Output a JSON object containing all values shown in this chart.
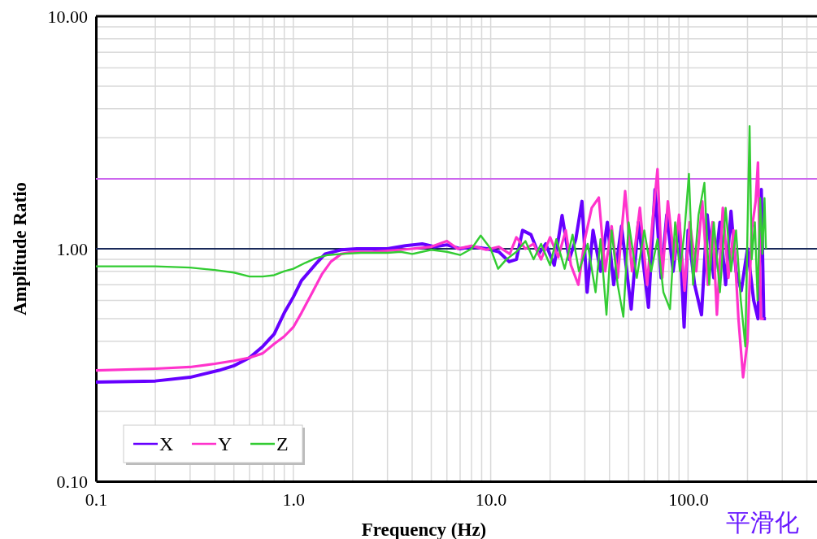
{
  "chart_data": {
    "type": "line",
    "xlabel": "Frequency (Hz)",
    "ylabel": "Amplitude Ratio",
    "log": "xy",
    "grid": true,
    "legend": "bottom left",
    "marker": "none",
    "line_style": "solid",
    "xlim": [
      0.1,
      450
    ],
    "ylim": [
      0.1,
      10
    ],
    "xticks": [
      {
        "value": 0.1,
        "label": "0.1"
      },
      {
        "value": 0.2,
        "label": null
      },
      {
        "value": 0.3,
        "label": null
      },
      {
        "value": 0.4,
        "label": null
      },
      {
        "value": 0.5,
        "label": null
      },
      {
        "value": 0.6,
        "label": null
      },
      {
        "value": 0.7,
        "label": null
      },
      {
        "value": 0.8,
        "label": null
      },
      {
        "value": 0.9,
        "label": null
      },
      {
        "value": 1,
        "label": "1.0"
      },
      {
        "value": 2,
        "label": null
      },
      {
        "value": 3,
        "label": null
      },
      {
        "value": 4,
        "label": null
      },
      {
        "value": 5,
        "label": null
      },
      {
        "value": 6,
        "label": null
      },
      {
        "value": 7,
        "label": null
      },
      {
        "value": 8,
        "label": null
      },
      {
        "value": 9,
        "label": null
      },
      {
        "value": 10,
        "label": "10.0"
      },
      {
        "value": 20,
        "label": null
      },
      {
        "value": 30,
        "label": null
      },
      {
        "value": 40,
        "label": null
      },
      {
        "value": 50,
        "label": null
      },
      {
        "value": 60,
        "label": null
      },
      {
        "value": 70,
        "label": null
      },
      {
        "value": 80,
        "label": null
      },
      {
        "value": 90,
        "label": null
      },
      {
        "value": 100,
        "label": "100.0"
      },
      {
        "value": 200,
        "label": null
      },
      {
        "value": 300,
        "label": null
      },
      {
        "value": 400,
        "label": null
      }
    ],
    "yticks": [
      {
        "value": 0.1,
        "label": "0.10"
      },
      {
        "value": 0.2,
        "label": null
      },
      {
        "value": 0.3,
        "label": null
      },
      {
        "value": 0.4,
        "label": null
      },
      {
        "value": 0.5,
        "label": null
      },
      {
        "value": 0.6,
        "label": null
      },
      {
        "value": 0.7,
        "label": null
      },
      {
        "value": 0.8,
        "label": null
      },
      {
        "value": 0.9,
        "label": null
      },
      {
        "value": 1,
        "label": "1.00"
      },
      {
        "value": 2,
        "label": null
      },
      {
        "value": 3,
        "label": null
      },
      {
        "value": 4,
        "label": null
      },
      {
        "value": 5,
        "label": null
      },
      {
        "value": 6,
        "label": null
      },
      {
        "value": 7,
        "label": null
      },
      {
        "value": 8,
        "label": null
      },
      {
        "value": 9,
        "label": null
      },
      {
        "value": 10,
        "label": "10.00"
      }
    ],
    "ref_lines": [
      {
        "axis": "y",
        "value": 1,
        "color": "#1a2a5a"
      },
      {
        "axis": "y",
        "value": 2,
        "color": "#cc66ee"
      }
    ],
    "annotations": [
      "平滑化"
    ],
    "series": [
      {
        "name": "X",
        "color": "#6600ff",
        "x": [
          0.1,
          0.2,
          0.3,
          0.42,
          0.5,
          0.6,
          0.7,
          0.8,
          0.9,
          1.0,
          1.1,
          1.3,
          1.45,
          1.75,
          2.1,
          3.0,
          3.7,
          4.5,
          5.2,
          6.0,
          7.0,
          8.0,
          9.6,
          11,
          12.4,
          13.5,
          14.5,
          16,
          17.5,
          19,
          21,
          23,
          25,
          27,
          29,
          30.8,
          33,
          36,
          39,
          42,
          46,
          51.5,
          56,
          60,
          63,
          68,
          73,
          78,
          84,
          90,
          95.5,
          100,
          108,
          117,
          125,
          135,
          145,
          155,
          165,
          175,
          186,
          200,
          215,
          226,
          235,
          242,
          248
        ],
        "values": [
          0.267,
          0.27,
          0.28,
          0.3,
          0.314,
          0.34,
          0.38,
          0.43,
          0.53,
          0.62,
          0.73,
          0.86,
          0.95,
          0.99,
          1.0,
          1.0,
          1.03,
          1.05,
          1.02,
          1.04,
          1.0,
          1.02,
          1.0,
          0.97,
          0.88,
          0.9,
          1.2,
          1.15,
          0.95,
          1.05,
          0.85,
          1.39,
          0.9,
          1.1,
          1.6,
          0.65,
          1.2,
          0.8,
          1.3,
          0.7,
          1.25,
          0.55,
          1.3,
          0.8,
          0.56,
          1.8,
          0.75,
          1.4,
          0.8,
          1.3,
          0.46,
          1.2,
          0.7,
          0.52,
          1.4,
          0.75,
          1.3,
          0.7,
          1.45,
          0.8,
          0.66,
          1.0,
          0.6,
          0.5,
          1.8,
          0.5,
          0.5
        ]
      },
      {
        "name": "Y",
        "color": "#ff33cc",
        "x": [
          0.1,
          0.2,
          0.3,
          0.4,
          0.5,
          0.6,
          0.7,
          0.8,
          0.9,
          1.0,
          1.1,
          1.25,
          1.4,
          1.55,
          1.75,
          2.0,
          2.5,
          3.0,
          4.0,
          5.0,
          6.0,
          6.8,
          8.0,
          9.5,
          11,
          12.5,
          13.5,
          15,
          16.5,
          18,
          20,
          22,
          24,
          25.5,
          27.8,
          30,
          32.5,
          35.3,
          38,
          41,
          44,
          48,
          52,
          57,
          62,
          66,
          70,
          74,
          79,
          85,
          90,
          96,
          102,
          110,
          118,
          126,
          133,
          140,
          150,
          160,
          170,
          180,
          190,
          200,
          210,
          220,
          226,
          234,
          242
        ],
        "values": [
          0.3,
          0.305,
          0.31,
          0.32,
          0.33,
          0.34,
          0.355,
          0.39,
          0.42,
          0.46,
          0.53,
          0.65,
          0.78,
          0.88,
          0.95,
          0.97,
          0.97,
          0.98,
          1.0,
          1.02,
          1.08,
          1.0,
          1.03,
          0.99,
          1.02,
          0.95,
          1.12,
          1.0,
          1.05,
          0.9,
          1.12,
          0.92,
          1.2,
          0.85,
          0.7,
          1.1,
          1.5,
          1.66,
          0.8,
          1.25,
          0.75,
          1.77,
          0.8,
          1.5,
          0.7,
          1.3,
          2.2,
          0.75,
          1.6,
          0.9,
          1.4,
          0.66,
          1.3,
          0.8,
          1.6,
          0.7,
          1.3,
          0.52,
          1.5,
          0.75,
          1.2,
          0.5,
          0.28,
          0.4,
          1.2,
          1.6,
          2.35,
          0.5,
          0.5
        ]
      },
      {
        "name": "Z",
        "color": "#33cc33",
        "x": [
          0.1,
          0.2,
          0.3,
          0.4,
          0.5,
          0.6,
          0.7,
          0.8,
          0.9,
          1.0,
          1.15,
          1.3,
          1.5,
          1.75,
          2.2,
          3.0,
          3.5,
          4.0,
          5.0,
          6.0,
          7.0,
          8.0,
          8.9,
          10.0,
          10.9,
          12,
          13.5,
          15,
          16.5,
          18,
          20,
          21.5,
          23.7,
          26,
          28,
          31,
          34,
          36,
          38.6,
          41,
          44,
          47,
          50,
          55,
          60,
          65,
          70,
          75,
          81,
          86,
          91,
          96,
          101,
          106,
          113,
          121,
          128,
          135,
          145,
          155,
          165,
          175,
          185,
          195,
          200,
          205,
          210,
          218,
          225,
          232,
          238,
          244,
          248
        ],
        "values": [
          0.84,
          0.84,
          0.83,
          0.81,
          0.79,
          0.76,
          0.76,
          0.77,
          0.8,
          0.82,
          0.87,
          0.91,
          0.94,
          0.95,
          0.96,
          0.96,
          0.97,
          0.95,
          0.99,
          0.97,
          0.94,
          1.0,
          1.14,
          1.0,
          0.82,
          0.9,
          0.97,
          1.08,
          0.9,
          1.05,
          0.85,
          1.1,
          0.82,
          1.15,
          0.8,
          1.05,
          0.65,
          1.1,
          0.52,
          1.2,
          0.7,
          0.51,
          1.3,
          0.75,
          1.2,
          0.8,
          1.1,
          0.65,
          0.55,
          1.3,
          0.8,
          1.2,
          2.1,
          0.7,
          1.4,
          1.92,
          0.7,
          1.3,
          0.65,
          1.5,
          0.8,
          1.2,
          0.6,
          0.38,
          1.2,
          3.37,
          0.9,
          1.3,
          0.6,
          1.65,
          0.95,
          1.65,
          1.0
        ]
      }
    ]
  }
}
